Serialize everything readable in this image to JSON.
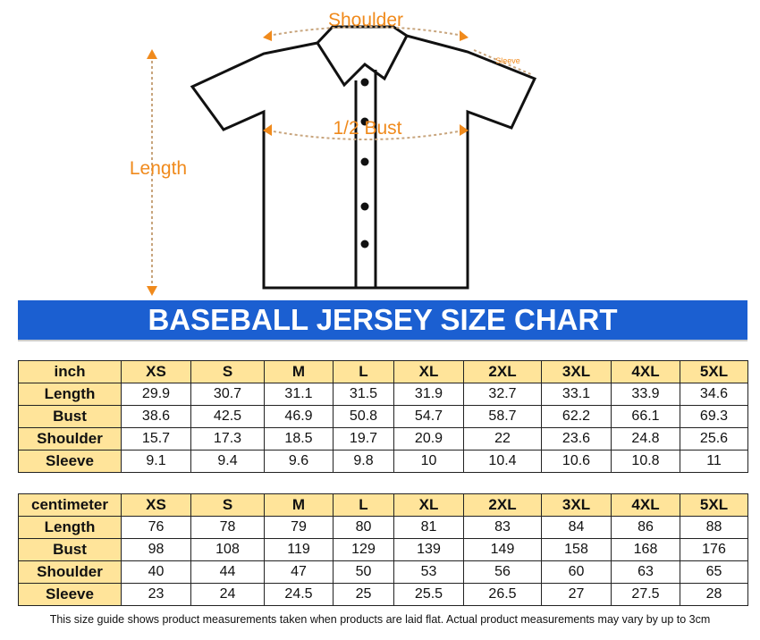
{
  "diagram": {
    "labels": {
      "shoulder": "Shoulder",
      "sleeve": "Sleeve",
      "bust": "1/2 Bust",
      "length": "Length"
    }
  },
  "banner": {
    "title": "BASEBALL JERSEY SIZE CHART"
  },
  "tables": [
    {
      "header": [
        "inch",
        "XS",
        "S",
        "M",
        "L",
        "XL",
        "2XL",
        "3XL",
        "4XL",
        "5XL"
      ],
      "rows": [
        [
          "Length",
          29.9,
          30.7,
          31.1,
          31.5,
          31.9,
          32.7,
          33.1,
          33.9,
          34.6
        ],
        [
          "Bust",
          38.6,
          42.5,
          46.9,
          50.8,
          54.7,
          58.7,
          62.2,
          66.1,
          69.3
        ],
        [
          "Shoulder",
          15.7,
          17.3,
          18.5,
          19.7,
          20.9,
          22,
          23.6,
          24.8,
          25.6
        ],
        [
          "Sleeve",
          9.1,
          9.4,
          9.6,
          9.8,
          10,
          10.4,
          10.6,
          10.8,
          11
        ]
      ]
    },
    {
      "header": [
        "centimeter",
        "XS",
        "S",
        "M",
        "L",
        "XL",
        "2XL",
        "3XL",
        "4XL",
        "5XL"
      ],
      "rows": [
        [
          "Length",
          76,
          78,
          79,
          80,
          81,
          83,
          84,
          86,
          88
        ],
        [
          "Bust",
          98,
          108,
          119,
          129,
          139,
          149,
          158,
          168,
          176
        ],
        [
          "Shoulder",
          40,
          44,
          47,
          50,
          53,
          56,
          60,
          63,
          65
        ],
        [
          "Sleeve",
          23,
          24,
          24.5,
          25,
          25.5,
          26.5,
          27,
          27.5,
          28
        ]
      ]
    }
  ],
  "footer": {
    "note": "This size guide shows product measurements taken when products are laid flat. Actual product measurements may vary by up to 3cm"
  }
}
